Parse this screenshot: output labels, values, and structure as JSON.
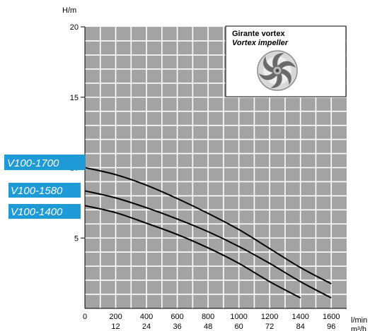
{
  "chart_data": {
    "type": "line",
    "ylabel": "H/m",
    "xlabel": "l/min",
    "xlabel2": "m³/h",
    "xlim": [
      0,
      1700
    ],
    "ylim": [
      0,
      20
    ],
    "xticks": [
      0,
      200,
      400,
      600,
      800,
      1000,
      1200,
      1400,
      1600
    ],
    "xticks_labels": [
      "0",
      "200",
      "400",
      "600",
      "800",
      "1000",
      "1200",
      "1400",
      "1600"
    ],
    "xticks2_labels": [
      "12",
      "24",
      "36",
      "48",
      "60",
      "72",
      "84",
      "96"
    ],
    "yticks": [
      5,
      10,
      15,
      20
    ],
    "yticks_labels": [
      "5",
      "10",
      "15",
      "20"
    ],
    "grid": true,
    "colors": {
      "plot_bg": "#a3a3a3",
      "grid": "#ffffff",
      "line": "#000000",
      "badge": "#1e9ad6"
    },
    "series": [
      {
        "name": "V100-1700",
        "x": [
          0,
          200,
          400,
          600,
          800,
          1000,
          1200,
          1400,
          1600
        ],
        "y": [
          10.0,
          9.5,
          8.75,
          7.8,
          6.75,
          5.6,
          4.25,
          2.9,
          1.75
        ]
      },
      {
        "name": "V100-1580",
        "x": [
          0,
          200,
          400,
          600,
          800,
          1000,
          1200,
          1400,
          1600
        ],
        "y": [
          8.35,
          7.85,
          7.15,
          6.35,
          5.45,
          4.4,
          3.2,
          1.9,
          0.75
        ]
      },
      {
        "name": "V100-1400",
        "x": [
          0,
          200,
          400,
          600,
          800,
          1000,
          1200,
          1400
        ],
        "y": [
          7.3,
          6.8,
          6.05,
          5.25,
          4.3,
          3.2,
          1.9,
          0.75
        ]
      }
    ],
    "inset": {
      "title": "Girante vortex",
      "subtitle": "Vortex impeller",
      "icon": "vortex-impeller-icon"
    }
  }
}
